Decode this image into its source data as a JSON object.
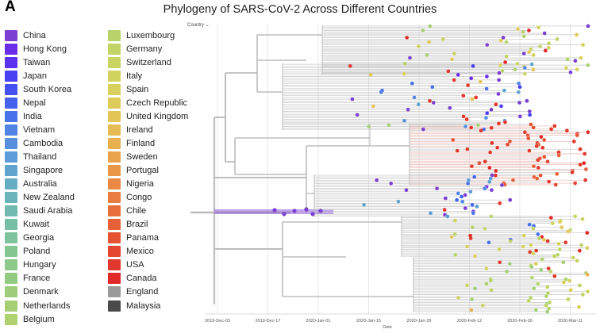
{
  "panel_label": "A",
  "title": "Phylogeny of SARS-CoV-2 Across Different Countries",
  "filter": {
    "label": "Country ⌄"
  },
  "legend": {
    "items": [
      {
        "label": "China",
        "color": "#7b3fd1"
      },
      {
        "label": "Hong Kong",
        "color": "#6a2ee8"
      },
      {
        "label": "Taiwan",
        "color": "#5a32f0"
      },
      {
        "label": "Japan",
        "color": "#4a41f2"
      },
      {
        "label": "South Korea",
        "color": "#4451f0"
      },
      {
        "label": "Nepal",
        "color": "#4562ee"
      },
      {
        "label": "India",
        "color": "#4972ea"
      },
      {
        "label": "Vietnam",
        "color": "#5183e5"
      },
      {
        "label": "Cambodia",
        "color": "#5690de"
      },
      {
        "label": "Thailand",
        "color": "#5c9cd8"
      },
      {
        "label": "Singapore",
        "color": "#61a5cf"
      },
      {
        "label": "Australia",
        "color": "#66adc4"
      },
      {
        "label": "New Zealand",
        "color": "#6bb4b9"
      },
      {
        "label": "Saudi Arabia",
        "color": "#70b9ae"
      },
      {
        "label": "Kuwait",
        "color": "#76bea4"
      },
      {
        "label": "Georgia",
        "color": "#7dc39b"
      },
      {
        "label": "Poland",
        "color": "#84c692"
      },
      {
        "label": "Hungary",
        "color": "#8cc98a"
      },
      {
        "label": "France",
        "color": "#94cb82"
      },
      {
        "label": "Denmark",
        "color": "#9dcd7b"
      },
      {
        "label": "Netherlands",
        "color": "#a6cf74"
      },
      {
        "label": "Belgium",
        "color": "#afd16e"
      },
      {
        "label": "Luxembourg",
        "color": "#b8d36a"
      },
      {
        "label": "Germany",
        "color": "#c1d465"
      },
      {
        "label": "Switzerland",
        "color": "#c9d462"
      },
      {
        "label": "Italy",
        "color": "#d1d35f"
      },
      {
        "label": "Spain",
        "color": "#d8d05c"
      },
      {
        "label": "Czech Republic",
        "color": "#dfcb59"
      },
      {
        "label": "United Kingdom",
        "color": "#e3c456"
      },
      {
        "label": "Ireland",
        "color": "#e6bb53"
      },
      {
        "label": "Finland",
        "color": "#e8b04f"
      },
      {
        "label": "Sweden",
        "color": "#e9a44c"
      },
      {
        "label": "Portugal",
        "color": "#ea9748"
      },
      {
        "label": "Nigeria",
        "color": "#ea8944"
      },
      {
        "label": "Congo",
        "color": "#e97c40"
      },
      {
        "label": "Chile",
        "color": "#e86e3c"
      },
      {
        "label": "Brazil",
        "color": "#e76138"
      },
      {
        "label": "Panama",
        "color": "#e65334"
      },
      {
        "label": "Mexico",
        "color": "#e44530"
      },
      {
        "label": "USA",
        "color": "#e2372c"
      },
      {
        "label": "Canada",
        "color": "#e02a28"
      },
      {
        "label": "England",
        "color": "#9a9a9a"
      },
      {
        "label": "Malaysia",
        "color": "#4a4a4a"
      }
    ]
  },
  "tree": {
    "xaxis": {
      "title": "Date",
      "ticks": [
        "2019-Dec-03",
        "2019-Dec-17",
        "2020-Jan-01",
        "2020-Jan-15",
        "2020-Jan-29",
        "2020-Feb-12",
        "2020-Feb-26",
        "2020-Mar-11"
      ]
    },
    "branch_color": "#bdbdbd",
    "grid_color": "#e3e3e3"
  }
}
